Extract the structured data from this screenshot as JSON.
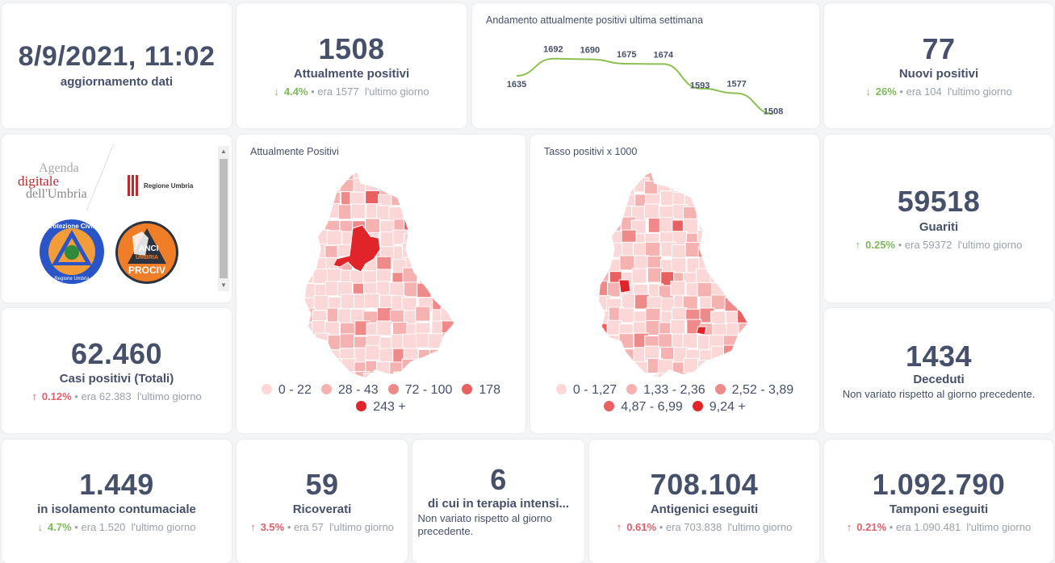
{
  "update": {
    "datetime": "8/9/2021, 11:02",
    "label": "aggiornamento dati"
  },
  "attualmente_positivi": {
    "value": "1508",
    "label": "Attualmente positivi",
    "arrow": "↓",
    "pct": "4.4%",
    "prev": "era 1577",
    "suffix": "l'ultimo giorno",
    "trend": "down",
    "color": "#7cba5a"
  },
  "trend_chart": {
    "title": "Andamento attualmente positivi ultima settimana"
  },
  "chart_data": {
    "type": "line",
    "title": "Andamento attualmente positivi ultima settimana",
    "x": [
      1,
      2,
      3,
      4,
      5,
      6,
      7,
      8
    ],
    "values": [
      1635,
      1692,
      1690,
      1675,
      1674,
      1593,
      1577,
      1508
    ],
    "labels": [
      "1635",
      "1692",
      "1690",
      "1675",
      "1674",
      "1593",
      "1577",
      "1508"
    ],
    "xlabel": "",
    "ylabel": "",
    "ylim": [
      1490,
      1710
    ],
    "grid": false,
    "color": "#8cc152"
  },
  "nuovi_positivi": {
    "value": "77",
    "label": "Nuovi positivi",
    "arrow": "↓",
    "pct": "26%",
    "prev": "era 104",
    "suffix": "l'ultimo giorno"
  },
  "logos": {
    "agenda": [
      "Agenda",
      "digitale",
      "dell'Umbria"
    ],
    "regione": "Regione Umbria",
    "protezione": "Protezione Civile",
    "protezione_sub": "Regione Umbria",
    "anci": [
      "ANCI",
      "UMBRIA",
      "PROCIV"
    ]
  },
  "map_positivi": {
    "title": "Attualmente Positivi",
    "legend": [
      {
        "label": "0 - 22",
        "color": "#fbd7d7"
      },
      {
        "label": "28 - 43",
        "color": "#f6b1b1"
      },
      {
        "label": "72 - 100",
        "color": "#ef8a8a"
      },
      {
        "label": "178",
        "color": "#e86060"
      },
      {
        "label": "243 +",
        "color": "#e0242a"
      }
    ]
  },
  "map_tasso": {
    "title": "Tasso positivi x 1000",
    "legend": [
      {
        "label": "0 - 1,27",
        "color": "#fbd7d7"
      },
      {
        "label": "1,33 - 2,36",
        "color": "#f6b1b1"
      },
      {
        "label": "2,52 - 3,89",
        "color": "#ef8a8a"
      },
      {
        "label": "4,87 - 6,99",
        "color": "#e86060"
      },
      {
        "label": "9,24 +",
        "color": "#e0242a"
      }
    ]
  },
  "guariti": {
    "value": "59518",
    "label": "Guariti",
    "arrow": "↑",
    "pct": "0.25%",
    "prev": "era 59372",
    "suffix": "l'ultimo giorno"
  },
  "casi_totali": {
    "value": "62.460",
    "label": "Casi positivi (Totali)",
    "arrow": "↑",
    "pct": "0.12%",
    "prev": "era 62.383",
    "suffix": "l'ultimo giorno"
  },
  "deceduti": {
    "value": "1434",
    "label": "Deceduti",
    "note": "Non variato rispetto al giorno precedente."
  },
  "isolamento": {
    "value": "1.449",
    "label": "in isolamento contumaciale",
    "arrow": "↓",
    "pct": "4.7%",
    "prev": "era 1.520",
    "suffix": "l'ultimo giorno"
  },
  "ricoverati": {
    "value": "59",
    "label": "Ricoverati",
    "arrow": "↑",
    "pct": "3.5%",
    "prev": "era 57",
    "suffix": "l'ultimo giorno"
  },
  "terapia": {
    "value": "6",
    "label": "di cui in terapia intensi...",
    "note": "Non variato rispetto al giorno precedente."
  },
  "antigenici": {
    "value": "708.104",
    "label": "Antigenici eseguiti",
    "arrow": "↑",
    "pct": "0.61%",
    "prev": "era 703.838",
    "suffix": "l'ultimo giorno"
  },
  "tamponi": {
    "value": "1.092.790",
    "label": "Tamponi eseguiti",
    "arrow": "↑",
    "pct": "0.21%",
    "prev": "era 1.090.481",
    "suffix": "l'ultimo giorno"
  },
  "colors": {
    "text": "#46506b",
    "muted": "#9aa0ac",
    "good": "#7cba5a",
    "bad": "#e0606e"
  }
}
